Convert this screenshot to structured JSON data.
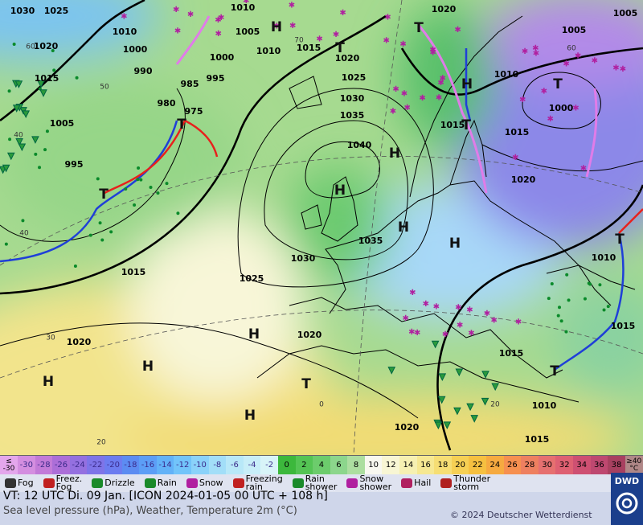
{
  "map": {
    "isobar_labels": [
      "1030",
      "1025",
      "1010",
      "1020",
      "1005",
      "1010",
      "1005",
      "1005",
      "1020",
      "1000",
      "1010",
      "1015",
      "1020",
      "1000",
      "990",
      "985",
      "995",
      "1015",
      "1025",
      "1010",
      "980",
      "975",
      "1030",
      "1000",
      "1035",
      "1005",
      "1015",
      "1015",
      "1040",
      "995",
      "1020",
      "1035",
      "1030",
      "1010",
      "1015",
      "1025",
      "1020",
      "1020",
      "1015",
      "1015",
      "1010",
      "1020",
      "1015"
    ],
    "temperature_labels": [
      "60",
      "50",
      "40",
      "40",
      "30",
      "20",
      "0",
      "20",
      "60",
      "70"
    ],
    "pressure_centers": [
      "H",
      "T",
      "T",
      "H",
      "T",
      "T",
      "H",
      "H",
      "T",
      "H",
      "H",
      "T",
      "H",
      "H",
      "H",
      "T",
      "H",
      "T",
      "T"
    ]
  },
  "temperature_scale": {
    "low_label": "≤\n-30",
    "high_label": "≥40\n°C",
    "values": [
      -30,
      -28,
      -26,
      -24,
      -22,
      -20,
      -18,
      -16,
      -14,
      -12,
      -10,
      -8,
      -6,
      -4,
      -2,
      0,
      2,
      4,
      6,
      8,
      10,
      12,
      14,
      16,
      18,
      20,
      22,
      24,
      26,
      28,
      30,
      32,
      34,
      36,
      38
    ],
    "low_color": "#e4a6ec",
    "high_color": "#b08888",
    "colors": [
      "#d48ee0",
      "#c27ad8",
      "#ac6ed8",
      "#9470e0",
      "#7e74e8",
      "#6c7cf0",
      "#5c8cf2",
      "#5c9ef6",
      "#62b2f8",
      "#72c4fa",
      "#8ad2fa",
      "#a2def8",
      "#b8e8f8",
      "#c8eef8",
      "#d8f4f8",
      "#3cb83c",
      "#54c454",
      "#6ccc6c",
      "#8cd68c",
      "#acdea0",
      "#f8f8f0",
      "#f8f6d4",
      "#f6f0b2",
      "#f6e892",
      "#f6de74",
      "#f6d054",
      "#f6c040",
      "#f6aa40",
      "#f69050",
      "#ee8060",
      "#e67070",
      "#de6072",
      "#ce5072",
      "#be4870",
      "#a84060"
    ]
  },
  "weather_legend": [
    "Fog",
    "Freez.\nFog",
    "Drizzle",
    "Rain",
    "Snow",
    "Freezing\nrain",
    "Rain\nshower",
    "Snow\nshower",
    "Hail",
    "Thunder\nstorm"
  ],
  "footer": {
    "valid_time": "VT: 12 UTC Di.  09 Jan. [ICON 2024-01-05  00 UTC + 108 h]",
    "description": "Sea level pressure (hPa), Weather, Temperature 2m (°C)",
    "copyright": "© 2024 Deutscher Wetterdienst",
    "logo": "DWD"
  }
}
